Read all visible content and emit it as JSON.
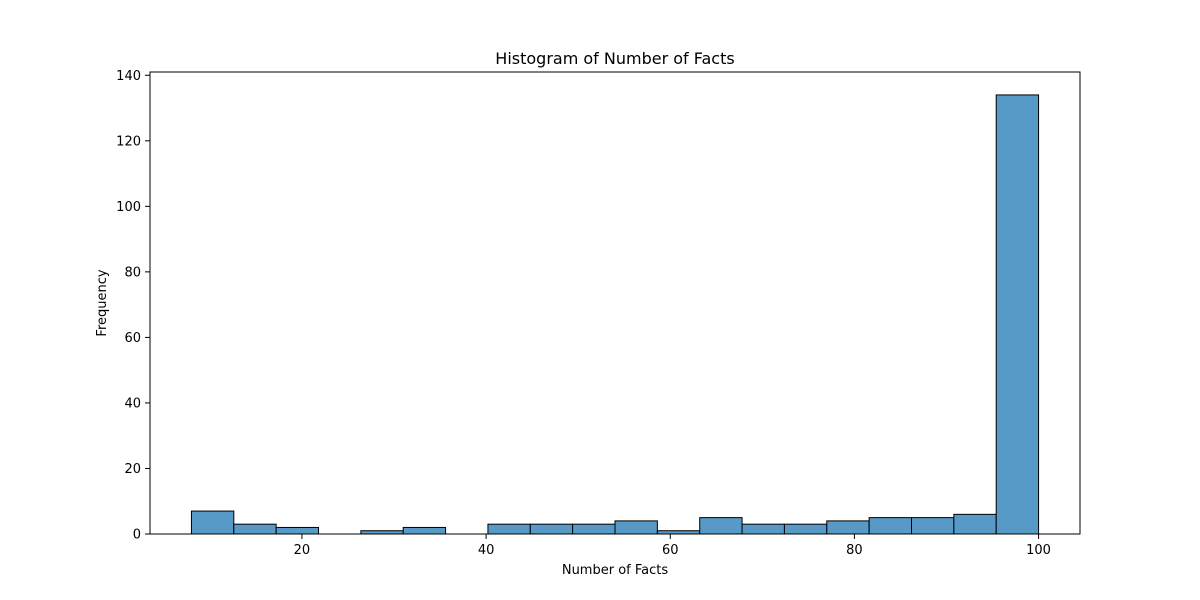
{
  "chart_data": {
    "type": "bar",
    "title": "Histogram of Number of Facts",
    "xlabel": "Number of Facts",
    "ylabel": "Frequency",
    "xlim": [
      3.5,
      104.5
    ],
    "ylim": [
      0,
      141
    ],
    "bin_edges": [
      8,
      12.6,
      17.2,
      21.8,
      26.4,
      31,
      35.6,
      40.2,
      44.8,
      49.4,
      54,
      58.6,
      63.2,
      67.8,
      72.4,
      77,
      81.6,
      86.2,
      90.8,
      95.4,
      100
    ],
    "values": [
      7,
      3,
      2,
      0,
      1,
      2,
      0,
      3,
      3,
      3,
      4,
      1,
      5,
      3,
      3,
      4,
      5,
      5,
      6,
      134
    ],
    "x_ticks": [
      20,
      40,
      60,
      80,
      100
    ],
    "x_tick_labels": [
      "20",
      "40",
      "60",
      "80",
      "100"
    ],
    "y_ticks": [
      0,
      20,
      40,
      60,
      80,
      100,
      120,
      140
    ],
    "y_tick_labels": [
      "0",
      "20",
      "40",
      "60",
      "80",
      "100",
      "120",
      "140"
    ],
    "grid": false,
    "colors": {
      "bar_fill": "#5799c7",
      "bar_edge": "#000000",
      "axes": "#000000",
      "background": "#ffffff"
    }
  }
}
